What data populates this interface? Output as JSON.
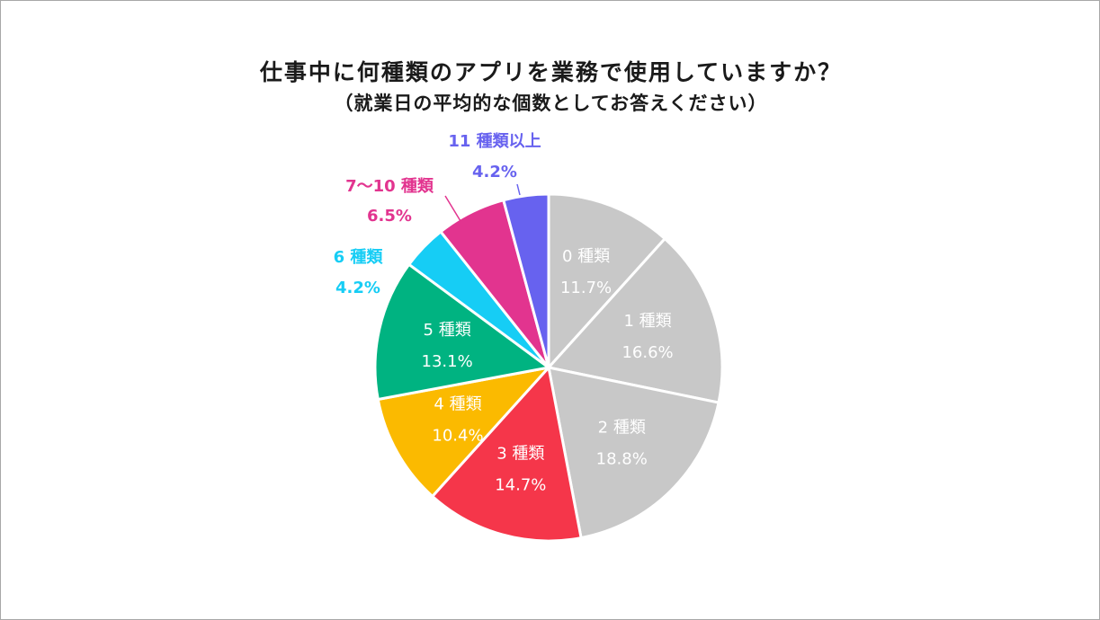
{
  "title": "仕事中に何種類のアプリを業務で使用していますか？",
  "subtitle": "（就業日の平均的な個数としてお答えください）",
  "chart_data": {
    "type": "pie",
    "start": "12 o'clock",
    "direction": "clockwise",
    "categories": [
      "0 種類",
      "1 種類",
      "2 種類",
      "3 種類",
      "4 種類",
      "5 種類",
      "6 種類",
      "7～10 種類",
      "11 種類以上"
    ],
    "values": [
      11.7,
      16.6,
      18.8,
      14.7,
      10.4,
      13.1,
      4.2,
      6.5,
      4.2
    ],
    "value_labels": [
      "11.7%",
      "16.6%",
      "18.8%",
      "14.7%",
      "10.4%",
      "13.1%",
      "4.2%",
      "6.5%",
      "4.2%"
    ],
    "colors": [
      "#c8c8c8",
      "#c8c8c8",
      "#c8c8c8",
      "#f5364a",
      "#fbba00",
      "#00b381",
      "#16cdf5",
      "#e2348f",
      "#6762ef"
    ],
    "label_placement": [
      "inside",
      "inside",
      "inside",
      "inside",
      "inside",
      "inside",
      "outside",
      "outside",
      "outside"
    ]
  }
}
